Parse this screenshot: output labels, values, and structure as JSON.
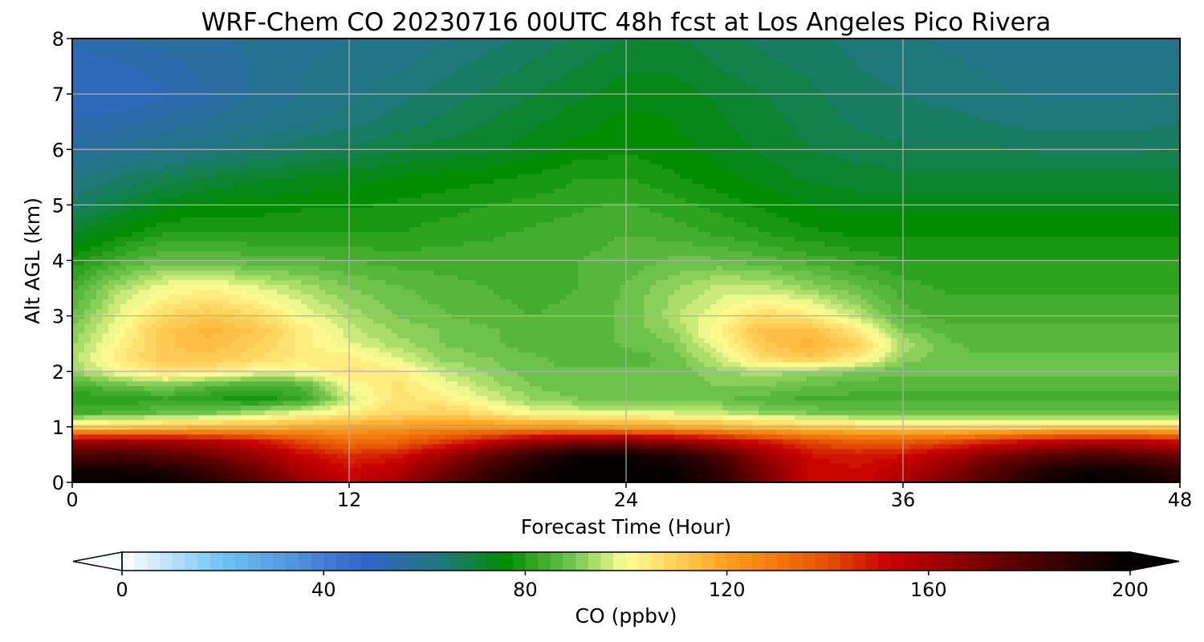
{
  "chart_data": {
    "type": "heatmap",
    "title": "WRF-Chem CO  20230716 00UTC 48h fcst at Los Angeles Pico Rivera",
    "xlabel": "Forecast Time (Hour)",
    "ylabel": "Alt AGL (km)",
    "xlim": [
      0,
      48
    ],
    "ylim": [
      0,
      8
    ],
    "x_ticks": [
      "0",
      "12",
      "24",
      "36",
      "48"
    ],
    "y_ticks": [
      "0",
      "1",
      "2",
      "3",
      "4",
      "5",
      "6",
      "7",
      "8"
    ],
    "grid": true,
    "colorbar": {
      "label": "CO  (ppbv)",
      "ticks": [
        "0",
        "40",
        "80",
        "120",
        "160",
        "200"
      ],
      "range": [
        0,
        200
      ],
      "extend": "both",
      "colors": [
        {
          "v": 0,
          "c": "#ffffff"
        },
        {
          "v": 20,
          "c": "#6ec3f5"
        },
        {
          "v": 48,
          "c": "#3264c8"
        },
        {
          "v": 64,
          "c": "#1e7878"
        },
        {
          "v": 76,
          "c": "#008c00"
        },
        {
          "v": 90,
          "c": "#78c850"
        },
        {
          "v": 100,
          "c": "#ffff96"
        },
        {
          "v": 120,
          "c": "#ffa01e"
        },
        {
          "v": 140,
          "c": "#e65000"
        },
        {
          "v": 152,
          "c": "#c80000"
        },
        {
          "v": 175,
          "c": "#640000"
        },
        {
          "v": 200,
          "c": "#000000"
        }
      ]
    },
    "field": {
      "x_hours": [
        0,
        2,
        4,
        6,
        8,
        10,
        12,
        14,
        16,
        18,
        20,
        22,
        24,
        26,
        28,
        30,
        32,
        34,
        36,
        38,
        40,
        42,
        44,
        46,
        48
      ],
      "alt_km": [
        0,
        0.25,
        0.5,
        0.75,
        1.0,
        1.25,
        1.5,
        1.75,
        2.0,
        2.25,
        2.5,
        2.75,
        3.0,
        3.5,
        4.0,
        4.5,
        5.0,
        5.5,
        6.0,
        6.5,
        7.0,
        7.5,
        8.0
      ],
      "co_ppbv": [
        [
          200,
          200,
          198,
          190,
          178,
          163,
          152,
          160,
          175,
          188,
          196,
          200,
          200,
          199,
          190,
          170,
          152,
          150,
          158,
          170,
          182,
          195,
          200,
          198,
          192
        ],
        [
          195,
          195,
          192,
          184,
          172,
          158,
          150,
          155,
          170,
          184,
          195,
          200,
          200,
          198,
          188,
          168,
          152,
          150,
          155,
          166,
          178,
          190,
          196,
          194,
          188
        ],
        [
          180,
          182,
          178,
          172,
          162,
          152,
          145,
          148,
          160,
          175,
          188,
          196,
          196,
          192,
          180,
          162,
          150,
          148,
          150,
          158,
          168,
          176,
          180,
          178,
          172
        ],
        [
          160,
          162,
          160,
          156,
          150,
          140,
          132,
          134,
          142,
          152,
          162,
          168,
          168,
          164,
          156,
          148,
          140,
          136,
          136,
          140,
          146,
          152,
          156,
          155,
          150
        ],
        [
          110,
          112,
          114,
          116,
          116,
          118,
          120,
          122,
          124,
          124,
          124,
          124,
          122,
          120,
          118,
          114,
          112,
          110,
          108,
          108,
          108,
          110,
          110,
          110,
          110
        ],
        [
          84,
          86,
          88,
          90,
          95,
          100,
          104,
          108,
          110,
          106,
          100,
          98,
          98,
          98,
          96,
          92,
          90,
          88,
          88,
          88,
          88,
          88,
          88,
          88,
          88
        ],
        [
          80,
          80,
          82,
          80,
          78,
          82,
          96,
          106,
          104,
          98,
          92,
          90,
          90,
          90,
          88,
          86,
          84,
          84,
          84,
          84,
          84,
          84,
          84,
          84,
          84
        ],
        [
          84,
          88,
          90,
          86,
          84,
          86,
          100,
          106,
          100,
          94,
          90,
          88,
          88,
          88,
          90,
          90,
          88,
          86,
          86,
          86,
          86,
          86,
          86,
          86,
          86
        ],
        [
          92,
          100,
          106,
          104,
          100,
          100,
          106,
          104,
          96,
          92,
          88,
          88,
          88,
          88,
          92,
          94,
          92,
          90,
          88,
          88,
          88,
          88,
          88,
          88,
          88
        ],
        [
          94,
          104,
          112,
          112,
          108,
          104,
          104,
          98,
          92,
          90,
          88,
          86,
          86,
          88,
          96,
          108,
          112,
          104,
          92,
          88,
          88,
          88,
          88,
          88,
          88
        ],
        [
          92,
          102,
          112,
          114,
          110,
          104,
          98,
          94,
          90,
          88,
          86,
          86,
          88,
          90,
          100,
          112,
          116,
          110,
          94,
          88,
          86,
          86,
          86,
          86,
          86
        ],
        [
          90,
          100,
          112,
          116,
          112,
          104,
          96,
          92,
          90,
          88,
          86,
          86,
          88,
          92,
          102,
          114,
          114,
          104,
          90,
          86,
          86,
          86,
          86,
          86,
          86
        ],
        [
          88,
          98,
          108,
          112,
          108,
          100,
          94,
          90,
          88,
          86,
          85,
          86,
          88,
          94,
          100,
          108,
          104,
          96,
          86,
          84,
          84,
          84,
          84,
          84,
          84
        ],
        [
          84,
          94,
          100,
          102,
          98,
          94,
          90,
          88,
          86,
          85,
          84,
          85,
          88,
          92,
          96,
          96,
          92,
          88,
          84,
          82,
          82,
          82,
          82,
          82,
          82
        ],
        [
          78,
          84,
          88,
          88,
          86,
          86,
          85,
          84,
          84,
          84,
          84,
          85,
          86,
          88,
          88,
          86,
          84,
          82,
          80,
          80,
          80,
          80,
          80,
          80,
          80
        ],
        [
          72,
          76,
          80,
          80,
          80,
          80,
          80,
          80,
          81,
          82,
          83,
          84,
          85,
          84,
          82,
          80,
          78,
          77,
          77,
          77,
          77,
          77,
          77,
          77,
          77
        ],
        [
          66,
          70,
          74,
          76,
          76,
          77,
          77,
          78,
          79,
          80,
          81,
          82,
          83,
          81,
          79,
          77,
          75,
          74,
          74,
          74,
          74,
          74,
          74,
          74,
          74
        ],
        [
          62,
          65,
          68,
          70,
          72,
          73,
          74,
          75,
          76,
          77,
          78,
          80,
          80,
          78,
          76,
          74,
          72,
          71,
          71,
          71,
          71,
          71,
          71,
          71,
          71
        ],
        [
          57,
          59,
          61,
          63,
          65,
          67,
          68,
          70,
          71,
          72,
          74,
          76,
          77,
          76,
          74,
          72,
          70,
          69,
          68,
          68,
          68,
          67,
          67,
          67,
          68
        ],
        [
          53,
          54,
          56,
          58,
          60,
          62,
          64,
          66,
          68,
          70,
          72,
          74,
          76,
          75,
          73,
          71,
          69,
          67,
          66,
          66,
          65,
          64,
          64,
          64,
          65
        ],
        [
          50,
          50,
          52,
          55,
          58,
          60,
          62,
          64,
          66,
          68,
          70,
          72,
          74,
          74,
          72,
          70,
          68,
          66,
          65,
          64,
          63,
          62,
          62,
          62,
          63
        ],
        [
          51,
          52,
          54,
          56,
          58,
          60,
          61,
          62,
          64,
          66,
          68,
          70,
          72,
          72,
          70,
          68,
          67,
          65,
          64,
          63,
          62,
          61,
          61,
          61,
          62
        ],
        [
          53,
          55,
          56,
          57,
          58,
          59,
          60,
          61,
          62,
          64,
          66,
          68,
          70,
          70,
          69,
          67,
          66,
          64,
          63,
          62,
          61,
          60,
          60,
          60,
          61
        ]
      ]
    }
  }
}
